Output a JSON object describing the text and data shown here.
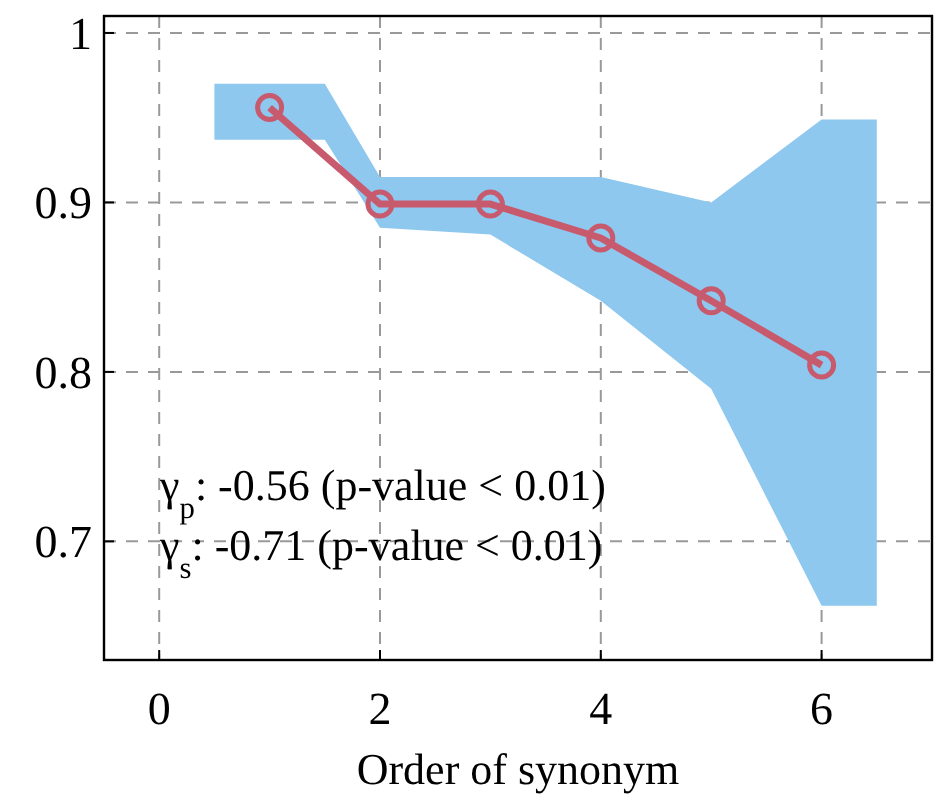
{
  "chart_data": {
    "type": "line",
    "xlabel": "Order of synonym",
    "xlim": [
      -0.5,
      7
    ],
    "ylim": [
      0.63,
      1.01
    ],
    "xticks": [
      0,
      2,
      4,
      6
    ],
    "yticks": [
      {
        "value": 0.7,
        "label": "0.7"
      },
      {
        "value": 0.8,
        "label": "0.8"
      },
      {
        "value": 0.9,
        "label": "0.9"
      },
      {
        "value": 1,
        "label": "1"
      }
    ],
    "grid": true,
    "marker": "circle",
    "line_style": "solid",
    "series": [
      {
        "type": "area",
        "color": "#8ec8ee",
        "x": [
          0.5,
          1.5,
          2,
          3,
          4,
          5,
          6,
          6.5
        ],
        "values": [
          null,
          null,
          null,
          null,
          null,
          null,
          null,
          null
        ],
        "lower": [
          0.937,
          0.937,
          0.885,
          0.881,
          0.842,
          0.79,
          0.662,
          0.662
        ],
        "upper": [
          0.97,
          0.97,
          0.915,
          0.915,
          0.915,
          0.9,
          0.949,
          0.949
        ]
      },
      {
        "color": "#c85a6e",
        "x": [
          1,
          2,
          3,
          4,
          5,
          6
        ],
        "values": [
          0.956,
          0.899,
          0.899,
          0.879,
          0.842,
          0.804
        ]
      }
    ],
    "annotations": [
      "γ$_{p}$: -0.56 (p-value < 0.01)",
      "γ$_{s}$: -0.71 (p-value < 0.01)"
    ]
  }
}
